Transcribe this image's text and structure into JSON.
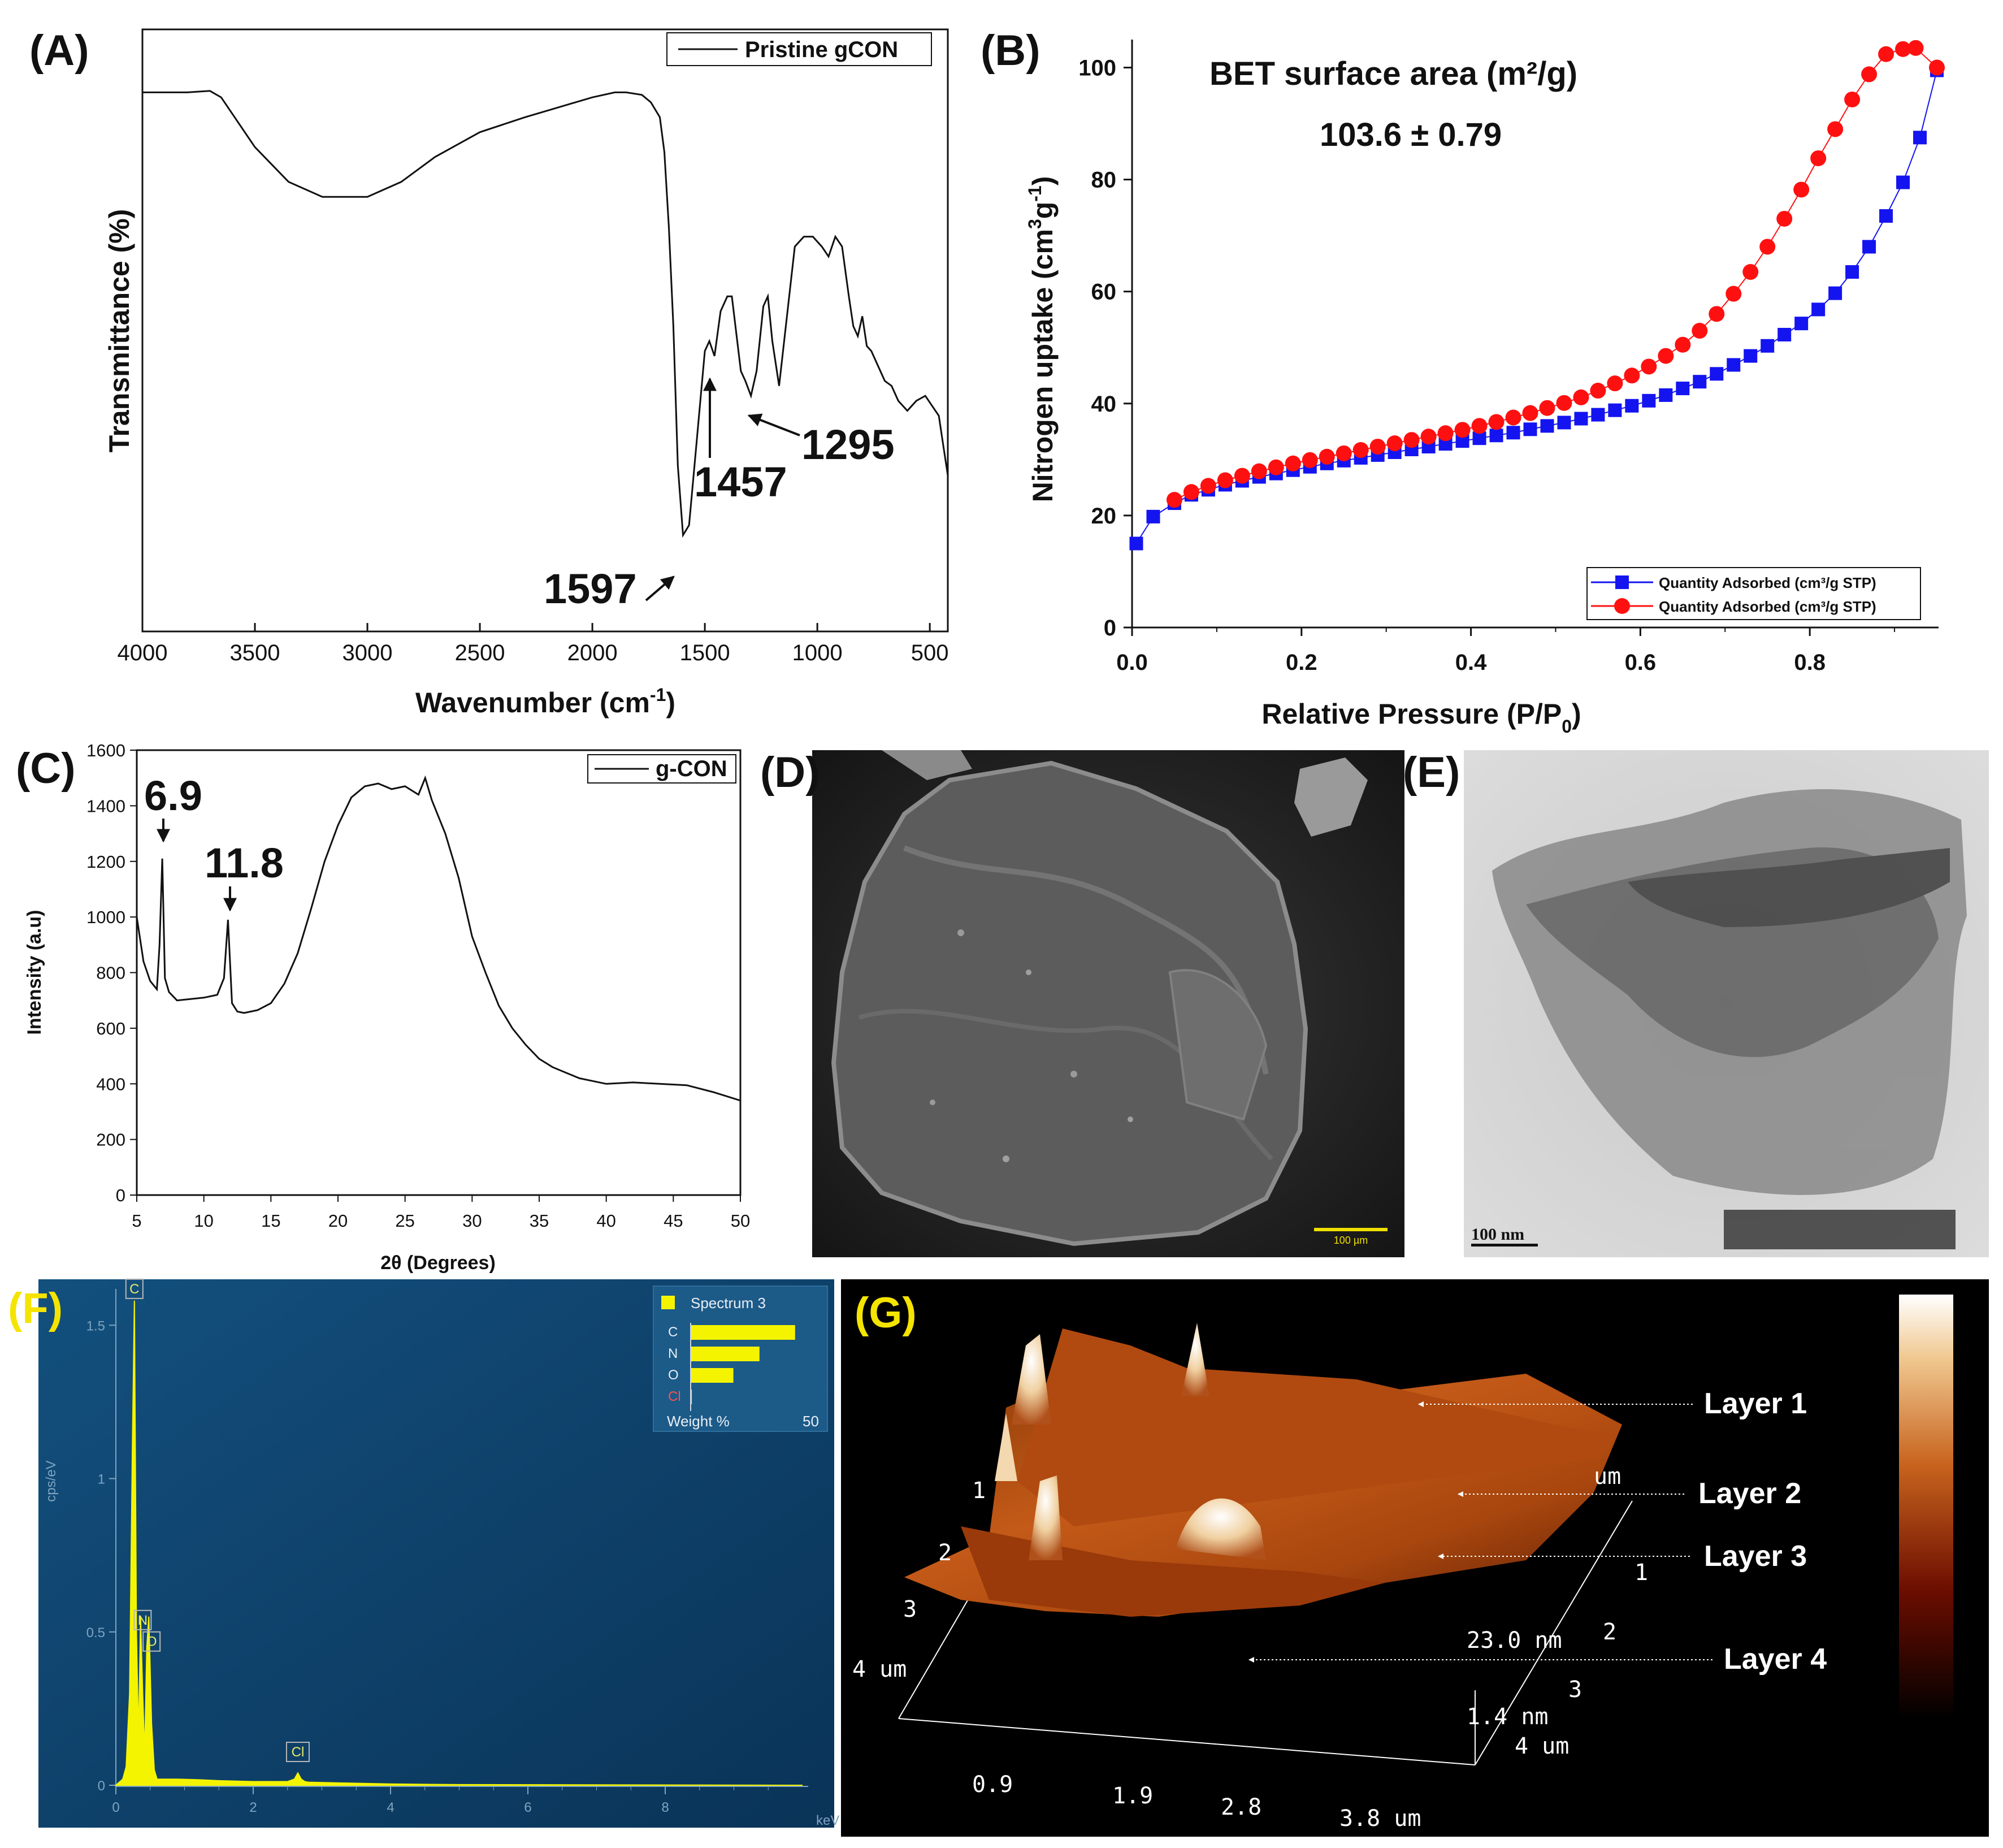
{
  "panels": {
    "a": {
      "letter": "(A)"
    },
    "b": {
      "letter": "(B)"
    },
    "c": {
      "letter": "(C)"
    },
    "d": {
      "letter": "(D)",
      "scale_bar": "100 µm"
    },
    "e": {
      "letter": "(E)",
      "scale_bar": "100 nm"
    },
    "f": {
      "letter": "(F)"
    },
    "g": {
      "letter": "(G)"
    }
  },
  "colors": {
    "adsorption": "#1414f0",
    "desorption": "#ff1010",
    "eds_background": "#0d3c62",
    "eds_spectrum": "#f4f400",
    "afm_background": "#000000"
  },
  "chart_data": [
    {
      "id": "ftir",
      "type": "line",
      "title": "",
      "xlabel": "Wavenumber (cm",
      "xlabel_sup": "-1",
      "xlabel_end": ")",
      "ylabel": "Transmittance (%)",
      "xlim": [
        4000,
        420
      ],
      "ylim": [
        0,
        100
      ],
      "x_inverted": true,
      "x_ticks": [
        4000,
        3500,
        3000,
        2500,
        2000,
        1500,
        1000,
        500
      ],
      "legend": [
        "Pristine gCON"
      ],
      "series": [
        {
          "name": "Pristine gCON",
          "x": [
            4000,
            3800,
            3700,
            3650,
            3500,
            3350,
            3200,
            3000,
            2850,
            2700,
            2500,
            2300,
            2150,
            2000,
            1900,
            1850,
            1780,
            1740,
            1700,
            1680,
            1660,
            1640,
            1620,
            1597,
            1570,
            1540,
            1500,
            1480,
            1457,
            1430,
            1400,
            1380,
            1340,
            1320,
            1295,
            1270,
            1240,
            1220,
            1200,
            1170,
            1140,
            1100,
            1060,
            1020,
            980,
            950,
            920,
            890,
            860,
            840,
            820,
            800,
            780,
            760,
            730,
            700,
            670,
            640,
            600,
            560,
            520,
            490,
            460,
            440,
            420
          ],
          "y": [
            97,
            97,
            97.3,
            96,
            86,
            79,
            76,
            76,
            79,
            84,
            89,
            92,
            94,
            96,
            97,
            97,
            96.5,
            95,
            92,
            85,
            70,
            50,
            22,
            8,
            10,
            25,
            45,
            47,
            44,
            53,
            56,
            56,
            41,
            39,
            36,
            41,
            54,
            56,
            47,
            38,
            50,
            66,
            68,
            68,
            66,
            64,
            68,
            66,
            56,
            50,
            48,
            52,
            46,
            45,
            42,
            39,
            38,
            35,
            33,
            35,
            36,
            34,
            32,
            26,
            20
          ]
        }
      ],
      "annotations": [
        {
          "label": "1597",
          "x": 1597
        },
        {
          "label": "1457",
          "x": 1457
        },
        {
          "label": "1295",
          "x": 1295
        }
      ]
    },
    {
      "id": "bet",
      "type": "line",
      "xlabel": "Relative Pressure (P/P",
      "xlabel_sub": "0",
      "xlabel_end": ")",
      "ylabel": "Nitrogen uptake (cm",
      "ylabel_sup1": "3",
      "ylabel_mid": "g",
      "ylabel_sup2": "-1",
      "ylabel_end": ")",
      "xlim": [
        0,
        0.95
      ],
      "ylim": [
        0,
        105
      ],
      "x_ticks": [
        "0.0",
        "0.2",
        "0.4",
        "0.6",
        "0.8"
      ],
      "y_ticks": [
        "0",
        "20",
        "40",
        "60",
        "80",
        "100"
      ],
      "annotation_title": "BET surface area (m²/g)",
      "annotation_value": "103.6 ± 0.79",
      "legend": [
        "Quantity Adsorbed (cm³/g STP)",
        "Quantity Adsorbed (cm³/g STP)"
      ],
      "series": [
        {
          "name": "Quantity Adsorbed (cm³/g STP)",
          "marker": "square",
          "x": [
            0.005,
            0.025,
            0.05,
            0.07,
            0.09,
            0.11,
            0.13,
            0.15,
            0.17,
            0.19,
            0.21,
            0.23,
            0.25,
            0.27,
            0.29,
            0.31,
            0.33,
            0.35,
            0.37,
            0.39,
            0.41,
            0.43,
            0.45,
            0.47,
            0.49,
            0.51,
            0.53,
            0.55,
            0.57,
            0.59,
            0.61,
            0.63,
            0.65,
            0.67,
            0.69,
            0.71,
            0.73,
            0.75,
            0.77,
            0.79,
            0.81,
            0.83,
            0.85,
            0.87,
            0.89,
            0.91,
            0.93,
            0.95
          ],
          "y": [
            15,
            19.8,
            22.2,
            23.7,
            24.6,
            25.5,
            26.2,
            26.9,
            27.5,
            28.1,
            28.7,
            29.3,
            29.8,
            30.3,
            30.8,
            31.3,
            31.8,
            32.3,
            32.8,
            33.3,
            33.8,
            34.3,
            34.8,
            35.4,
            36,
            36.6,
            37.3,
            38,
            38.8,
            39.6,
            40.5,
            41.5,
            42.7,
            43.9,
            45.3,
            46.9,
            48.5,
            50.3,
            52.3,
            54.3,
            56.8,
            59.7,
            63.5,
            68,
            73.5,
            79.5,
            87.5,
            99.5
          ]
        },
        {
          "name": "Quantity Adsorbed (cm³/g STP)",
          "marker": "circle",
          "x": [
            0.05,
            0.07,
            0.09,
            0.11,
            0.13,
            0.15,
            0.17,
            0.19,
            0.21,
            0.23,
            0.25,
            0.27,
            0.29,
            0.31,
            0.33,
            0.35,
            0.37,
            0.39,
            0.41,
            0.43,
            0.45,
            0.47,
            0.49,
            0.51,
            0.53,
            0.55,
            0.57,
            0.59,
            0.61,
            0.63,
            0.65,
            0.67,
            0.69,
            0.71,
            0.73,
            0.75,
            0.77,
            0.79,
            0.81,
            0.83,
            0.85,
            0.87,
            0.89,
            0.91,
            0.925,
            0.95
          ],
          "y": [
            22.8,
            24.2,
            25.3,
            26.3,
            27.1,
            27.9,
            28.6,
            29.3,
            29.9,
            30.5,
            31.1,
            31.7,
            32.3,
            32.9,
            33.5,
            34.1,
            34.7,
            35.3,
            36,
            36.7,
            37.5,
            38.3,
            39.2,
            40.1,
            41.1,
            42.3,
            43.6,
            45,
            46.6,
            48.5,
            50.5,
            53,
            56,
            59.6,
            63.5,
            68,
            73,
            78.2,
            83.8,
            89,
            94.3,
            98.8,
            102.4,
            103.3,
            103.5,
            100
          ]
        }
      ]
    },
    {
      "id": "xrd",
      "type": "line",
      "xlabel": "2θ (Degrees)",
      "ylabel": "Intensity (a.u)",
      "xlim": [
        5,
        50
      ],
      "ylim": [
        0,
        1600
      ],
      "x_ticks": [
        "5",
        "10",
        "15",
        "20",
        "25",
        "30",
        "35",
        "40",
        "45",
        "50"
      ],
      "y_ticks": [
        "0",
        "200",
        "400",
        "600",
        "800",
        "1000",
        "1200",
        "1400",
        "1600"
      ],
      "legend": [
        "g-CON"
      ],
      "annotations": [
        {
          "label": "6.9",
          "x": 6.9
        },
        {
          "label": "11.8",
          "x": 11.8
        }
      ],
      "series": [
        {
          "name": "g-CON",
          "x": [
            5,
            5.5,
            6,
            6.5,
            6.7,
            6.9,
            7.1,
            7.4,
            8,
            9,
            10,
            11,
            11.5,
            11.8,
            12.1,
            12.5,
            13,
            14,
            15,
            16,
            17,
            18,
            19,
            20,
            21,
            22,
            23,
            24,
            25,
            26,
            26.5,
            27,
            28,
            29,
            30,
            31,
            32,
            33,
            34,
            35,
            36,
            37,
            38,
            39,
            40,
            42,
            44,
            46,
            48,
            50
          ],
          "y": [
            1000,
            840,
            770,
            740,
            900,
            1210,
            780,
            730,
            700,
            705,
            710,
            720,
            780,
            990,
            690,
            660,
            655,
            665,
            690,
            760,
            870,
            1030,
            1200,
            1330,
            1430,
            1470,
            1480,
            1460,
            1470,
            1440,
            1500,
            1420,
            1300,
            1140,
            930,
            800,
            680,
            600,
            540,
            490,
            460,
            440,
            420,
            410,
            400,
            405,
            400,
            395,
            370,
            340
          ]
        }
      ]
    },
    {
      "id": "eds",
      "type": "line",
      "xlabel": "keV",
      "ylabel": "cps/eV",
      "xlim": [
        0,
        10
      ],
      "ylim": [
        0,
        1.6
      ],
      "x_ticks": [
        "0",
        "2",
        "4",
        "6",
        "8"
      ],
      "y_ticks": [
        "0",
        "0.5",
        "1",
        "1.5"
      ],
      "peak_labels": [
        "C",
        "N",
        "O",
        "Cl"
      ],
      "inset": {
        "title": "Spectrum 3",
        "elements": [
          "C",
          "N",
          "O",
          "Cl"
        ],
        "weight_percent": [
          44,
          29,
          18,
          0.5
        ],
        "xlabel": "Weight %",
        "xmax_label": "50"
      },
      "series": [
        {
          "name": "Spectrum 3",
          "x": [
            0,
            0.1,
            0.15,
            0.2,
            0.24,
            0.27,
            0.3,
            0.33,
            0.36,
            0.39,
            0.42,
            0.45,
            0.48,
            0.52,
            0.56,
            0.6,
            0.7,
            0.9,
            1.2,
            1.5,
            2,
            2.5,
            2.6,
            2.65,
            2.7,
            2.75,
            2.8,
            3.2,
            3.6,
            4,
            5,
            10
          ],
          "y": [
            0,
            0.02,
            0.06,
            0.3,
            1.1,
            1.58,
            0.5,
            0.15,
            0.55,
            0.3,
            0.1,
            0.45,
            0.55,
            0.2,
            0.05,
            0.02,
            0.02,
            0.02,
            0.018,
            0.015,
            0.012,
            0.012,
            0.02,
            0.04,
            0.02,
            0.012,
            0.01,
            0.008,
            0.006,
            0.004,
            0.002,
            0
          ]
        }
      ]
    },
    {
      "id": "afm",
      "type": "surface",
      "x_ticks": [
        "0.9",
        "1.9",
        "2.8",
        "3.8 um"
      ],
      "y_labels": [
        "1",
        "2",
        "3",
        "4 um"
      ],
      "z_labels": [
        "1",
        "2",
        "3",
        "4 um"
      ],
      "depth_label": "1.4 nm",
      "height_label": "23.0 nm",
      "corner_label": "um",
      "layers": [
        "Layer 1",
        "Layer 2",
        "Layer 3",
        "Layer 4"
      ]
    }
  ]
}
